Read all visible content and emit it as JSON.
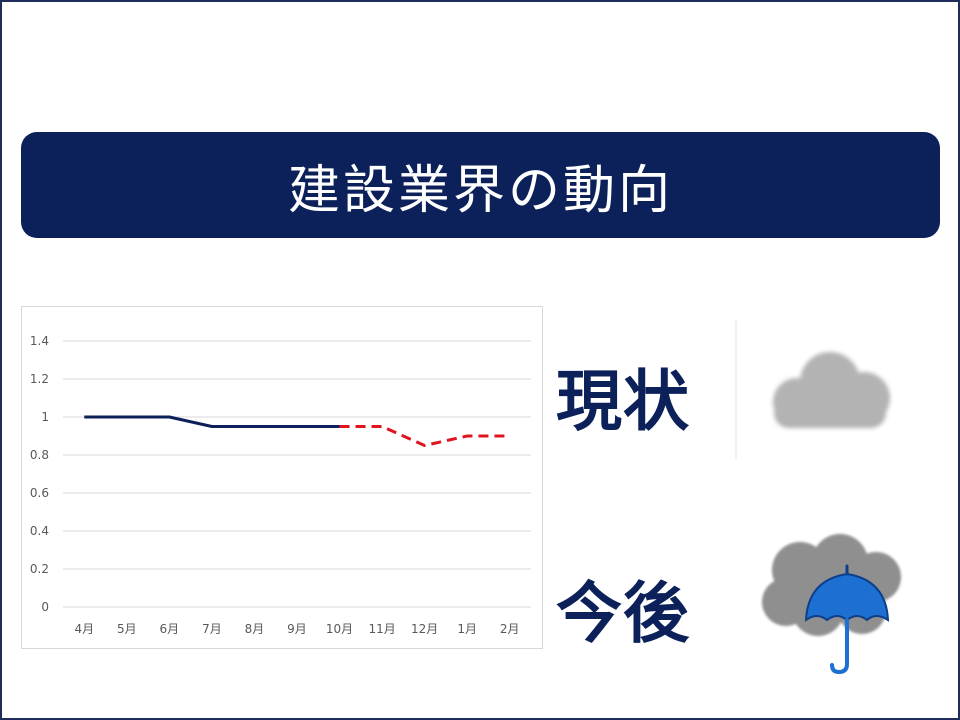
{
  "title": "建設業界の動向",
  "labels": {
    "current": "現状",
    "future": "今後"
  },
  "icons": {
    "current": "cloud-icon",
    "future": "rain-umbrella-icon"
  },
  "colors": {
    "banner": "#0c215a",
    "actual_line": "#0c215a",
    "forecast_line": "#e0141e",
    "cloud": "#b3b3b3",
    "umbrella": "#1d6fd1"
  },
  "chart_data": {
    "type": "line",
    "categories": [
      "4月",
      "5月",
      "6月",
      "7月",
      "8月",
      "9月",
      "10月",
      "11月",
      "12月",
      "1月",
      "2月"
    ],
    "ylim": [
      0,
      1.4
    ],
    "yticks": [
      "0",
      "0.2",
      "0.4",
      "0.6",
      "0.8",
      "1",
      "1.2",
      "1.4"
    ],
    "grid": true,
    "series": [
      {
        "style": "solid",
        "color": "#0c215a",
        "values": [
          1,
          1,
          1,
          0.95,
          0.95,
          0.95,
          0.95,
          null,
          null,
          null,
          null
        ]
      },
      {
        "style": "dashed",
        "color": "#e0141e",
        "values": [
          null,
          null,
          null,
          null,
          null,
          null,
          0.95,
          0.95,
          0.85,
          0.9,
          0.9
        ]
      }
    ]
  }
}
